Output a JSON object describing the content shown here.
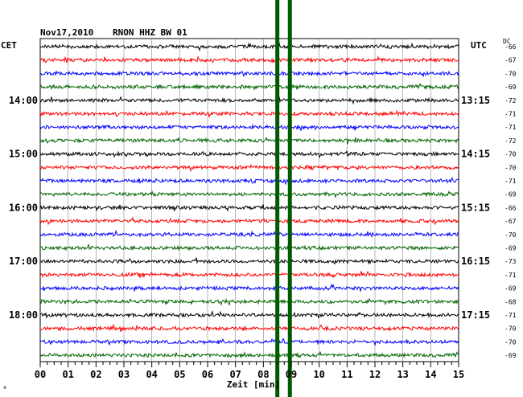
{
  "header": {
    "date": "Nov17,2010",
    "station": "RNON HHZ BW 01",
    "left_zone": "CET",
    "right_zone": "UTC",
    "dc_label": "DC",
    "corner_mark": "x"
  },
  "chart_data": {
    "type": "line",
    "title": "Nov17,2010   RNON HHZ BW 01",
    "xlabel": "Zeit [min]",
    "xlim": [
      0,
      15
    ],
    "x_ticks": [
      "00",
      "01",
      "02",
      "03",
      "04",
      "05",
      "06",
      "07",
      "08",
      "09",
      "10",
      "11",
      "12",
      "13",
      "14",
      "15"
    ],
    "trace_count": 24,
    "trace_colors": [
      "#000000",
      "#ff0000",
      "#0000ff",
      "#006400"
    ],
    "left_hour_labels": [
      {
        "trace": 4,
        "label": "14:00"
      },
      {
        "trace": 8,
        "label": "15:00"
      },
      {
        "trace": 12,
        "label": "16:00"
      },
      {
        "trace": 16,
        "label": "17:00"
      },
      {
        "trace": 20,
        "label": "18:00"
      }
    ],
    "right_hour_labels": [
      {
        "trace": 4,
        "label": "13:15"
      },
      {
        "trace": 8,
        "label": "14:15"
      },
      {
        "trace": 12,
        "label": "15:15"
      },
      {
        "trace": 16,
        "label": "16:15"
      },
      {
        "trace": 20,
        "label": "17:15"
      }
    ],
    "dc_offsets": [
      "-66",
      "-67",
      "-70",
      "-69",
      "-72",
      "-71",
      "-71",
      "-72",
      "-70",
      "-70",
      "-71",
      "-69",
      "-66",
      "-67",
      "-70",
      "-69",
      "-73",
      "-71",
      "-69",
      "-68",
      "-71",
      "-70",
      "-70",
      "-69"
    ],
    "event_markers_min": [
      8.5,
      8.95
    ],
    "marker_color": "#005a00",
    "grid": true
  }
}
